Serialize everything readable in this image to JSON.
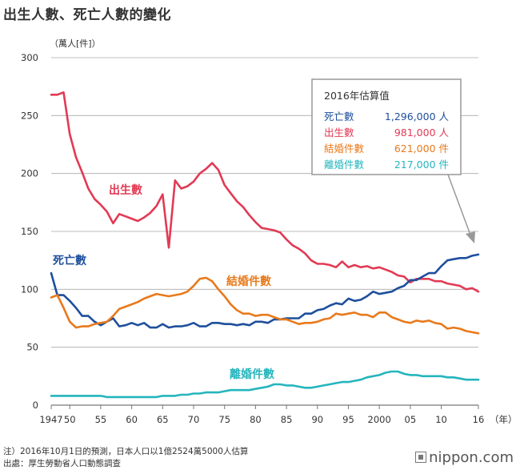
{
  "title": "出生人數、死亡人數的變化",
  "chart_data": {
    "type": "line",
    "unit_label": "（萬人[件]）",
    "x_unit_label": "（年）",
    "xlim": [
      1947,
      2016
    ],
    "ylim": [
      0,
      300
    ],
    "yticks": [
      0,
      50,
      100,
      150,
      200,
      250,
      300
    ],
    "xticks": [
      {
        "value": 1947,
        "label": "1947"
      },
      {
        "value": 1950,
        "label": "50"
      },
      {
        "value": 1955,
        "label": "55"
      },
      {
        "value": 1960,
        "label": "60"
      },
      {
        "value": 1965,
        "label": "65"
      },
      {
        "value": 1970,
        "label": "70"
      },
      {
        "value": 1975,
        "label": "75"
      },
      {
        "value": 1980,
        "label": "80"
      },
      {
        "value": 1985,
        "label": "85"
      },
      {
        "value": 1990,
        "label": "90"
      },
      {
        "value": 1995,
        "label": "95"
      },
      {
        "value": 2000,
        "label": "2000"
      },
      {
        "value": 2005,
        "label": "05"
      },
      {
        "value": 2010,
        "label": "10"
      },
      {
        "value": 2016,
        "label": "16"
      }
    ],
    "x": [
      1947,
      1948,
      1949,
      1950,
      1951,
      1952,
      1953,
      1954,
      1955,
      1956,
      1957,
      1958,
      1959,
      1960,
      1961,
      1962,
      1963,
      1964,
      1965,
      1966,
      1967,
      1968,
      1969,
      1970,
      1971,
      1972,
      1973,
      1974,
      1975,
      1976,
      1977,
      1978,
      1979,
      1980,
      1981,
      1982,
      1983,
      1984,
      1985,
      1986,
      1987,
      1988,
      1989,
      1990,
      1991,
      1992,
      1993,
      1994,
      1995,
      1996,
      1997,
      1998,
      1999,
      2000,
      2001,
      2002,
      2003,
      2004,
      2005,
      2006,
      2007,
      2008,
      2009,
      2010,
      2011,
      2012,
      2013,
      2014,
      2015,
      2016
    ],
    "series": [
      {
        "name": "出生數",
        "color": "#e23a54",
        "values": [
          268,
          268,
          270,
          234,
          214,
          201,
          187,
          178,
          173,
          167,
          157,
          165,
          163,
          161,
          159,
          162,
          166,
          172,
          182,
          136,
          194,
          187,
          189,
          193,
          200,
          204,
          209,
          203,
          190,
          183,
          176,
          171,
          164,
          158,
          153,
          152,
          151,
          149,
          143,
          138,
          135,
          131,
          125,
          122,
          122,
          121,
          119,
          124,
          119,
          121,
          119,
          120,
          118,
          119,
          117,
          115,
          112,
          111,
          106,
          109,
          109,
          109,
          107,
          107,
          105,
          104,
          103,
          100,
          101,
          98
        ]
      },
      {
        "name": "死亡數",
        "color": "#1e4f9c",
        "values": [
          114,
          95,
          95,
          90,
          84,
          77,
          77,
          72,
          69,
          72,
          75,
          68,
          69,
          71,
          69,
          71,
          67,
          67,
          70,
          67,
          68,
          68,
          69,
          71,
          68,
          68,
          71,
          71,
          70,
          70,
          69,
          70,
          69,
          72,
          72,
          71,
          74,
          74,
          75,
          75,
          75,
          79,
          79,
          82,
          83,
          86,
          88,
          87,
          92,
          90,
          91,
          94,
          98,
          96,
          97,
          98,
          101,
          103,
          108,
          108,
          111,
          114,
          114,
          120,
          125,
          126,
          127,
          127,
          129,
          130
        ]
      },
      {
        "name": "結婚件數",
        "color": "#e87a1c",
        "values": [
          93,
          95,
          84,
          72,
          67,
          68,
          68,
          70,
          71,
          72,
          77,
          83,
          85,
          87,
          89,
          92,
          94,
          96,
          95,
          94,
          95,
          96,
          98,
          103,
          109,
          110,
          107,
          100,
          94,
          87,
          82,
          79,
          79,
          77,
          78,
          78,
          76,
          74,
          74,
          72,
          70,
          71,
          71,
          72,
          74,
          75,
          79,
          78,
          79,
          80,
          78,
          78,
          76,
          80,
          80,
          76,
          74,
          72,
          71,
          73,
          72,
          73,
          71,
          70,
          66,
          67,
          66,
          64,
          63,
          62
        ]
      },
      {
        "name": "離婚件數",
        "color": "#25b5bd",
        "values": [
          8,
          8,
          8,
          8,
          8,
          8,
          8,
          8,
          8,
          7,
          7,
          7,
          7,
          7,
          7,
          7,
          7,
          7,
          8,
          8,
          8,
          9,
          9,
          10,
          10,
          11,
          11,
          11,
          12,
          13,
          13,
          13,
          13,
          14,
          15,
          16,
          18,
          18,
          17,
          17,
          16,
          15,
          15,
          16,
          17,
          18,
          19,
          20,
          20,
          21,
          22,
          24,
          25,
          26,
          28,
          29,
          29,
          27,
          26,
          26,
          25,
          25,
          25,
          25,
          24,
          24,
          23,
          22,
          22,
          22
        ]
      }
    ]
  },
  "labels": {
    "births": "出生數",
    "deaths": "死亡數",
    "marriages": "結婚件數",
    "divorces": "離婚件數"
  },
  "estimate_box": {
    "title": "2016年估算值",
    "rows": [
      {
        "label": "死亡數",
        "value": "1,296,000 人",
        "color": "#1e4f9c"
      },
      {
        "label": "出生數",
        "value": "981,000 人",
        "color": "#e23a54"
      },
      {
        "label": "結婚件數",
        "value": "621,000 件",
        "color": "#e87a1c"
      },
      {
        "label": "離婚件數",
        "value": "217,000 件",
        "color": "#25b5bd"
      }
    ]
  },
  "footnote": {
    "note": "注）2016年10月1日的預測，日本人口以1億2524萬5000人估算",
    "source": "出處：厚生勞動省人口動態調查"
  },
  "logo": "nippon.com"
}
